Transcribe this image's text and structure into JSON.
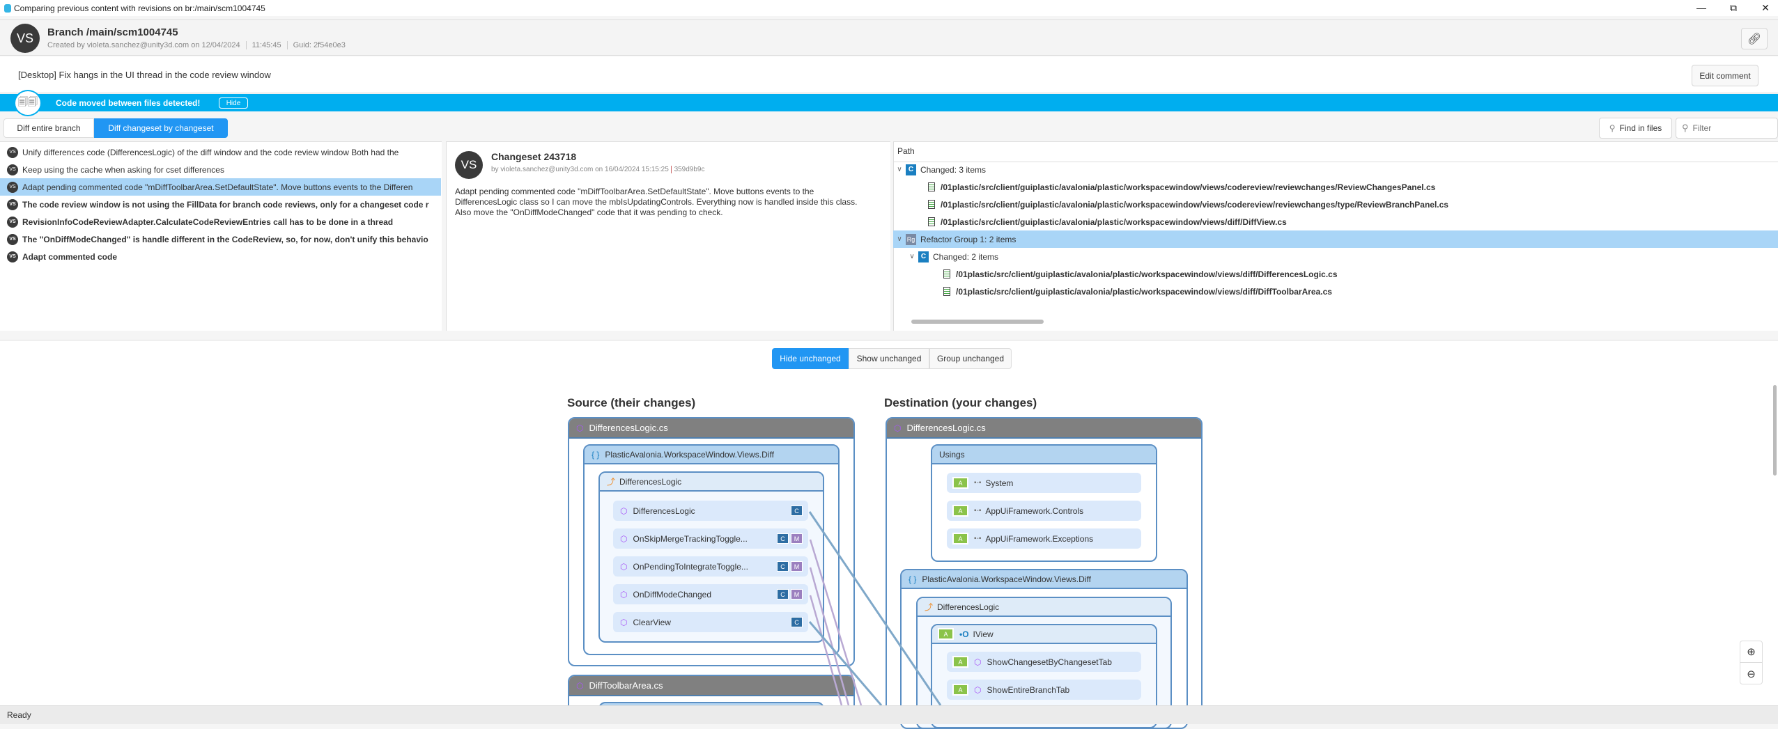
{
  "window": {
    "title": "Comparing previous content with revisions on br:/main/scm1004745",
    "controls": [
      "minimize",
      "restore",
      "close"
    ]
  },
  "header": {
    "avatar": "VS",
    "title": "Branch /main/scm1004745",
    "created": "Created by violeta.sanchez@unity3d.com on 12/04/2024",
    "time": "11:45:45",
    "guid": "Guid: 2f54e0e3"
  },
  "comment": {
    "text": "[Desktop] Fix hangs in the UI thread in the code review window",
    "edit_label": "Edit comment"
  },
  "banner": {
    "text": "Code moved between files detected!",
    "hide_label": "Hide",
    "color": "#00aeef"
  },
  "tabs": [
    {
      "label": "Diff entire branch",
      "active": false
    },
    {
      "label": "Diff changeset by changeset",
      "active": true
    }
  ],
  "toolbar": {
    "find_label": "Find in files",
    "filter_placeholder": "Filter"
  },
  "changesets": [
    {
      "avatar": "VS",
      "text": "Unify differences code (DifferencesLogic) of the diff window and the code review window Both had the",
      "bold": false
    },
    {
      "avatar": "VS",
      "text": "Keep using the cache when asking for cset differences",
      "bold": false
    },
    {
      "avatar": "VS",
      "text": "Adapt pending commented code \"mDiffToolbarArea.SetDefaultState\". Move buttons events to the Differen",
      "bold": false,
      "selected": true
    },
    {
      "avatar": "VS",
      "text": "The code review window is not using the FillData for branch code reviews, only for a changeset code r",
      "bold": true
    },
    {
      "avatar": "VS",
      "text": "RevisionInfoCodeReviewAdapter.CalculateCodeReviewEntries call has to be done in a thread",
      "bold": true
    },
    {
      "avatar": "VS",
      "text": "The \"OnDiffModeChanged\" is handle different in the CodeReview, so, for now, don't unify this behavio",
      "bold": true
    },
    {
      "avatar": "VS",
      "text": "Adapt commented code",
      "bold": true
    }
  ],
  "details": {
    "avatar": "VS",
    "title": "Changeset 243718",
    "meta": "by violeta.sanchez@unity3d.com on 16/04/2024 15:15:25",
    "hash": "359d9b9c",
    "body": "Adapt pending commented code \"mDiffToolbarArea.SetDefaultState\". Move buttons events to the DifferencesLogic class so I can move the mbIsUpdatingControls. Everything now is handled inside this class. Also move the \"OnDiffModeChanged\" code that it was pending to check."
  },
  "tree": {
    "header": "Path",
    "rows": [
      {
        "type": "group",
        "badge": "C",
        "label": "Changed: 3 items",
        "level": 0
      },
      {
        "type": "file",
        "label": "/01plastic/src/client/guiplastic/avalonia/plastic/workspacewindow/views/codereview/reviewchanges/ReviewChangesPanel.cs",
        "level": 1
      },
      {
        "type": "file",
        "label": "/01plastic/src/client/guiplastic/avalonia/plastic/workspacewindow/views/codereview/reviewchanges/type/ReviewBranchPanel.cs",
        "level": 1
      },
      {
        "type": "file",
        "label": "/01plastic/src/client/guiplastic/avalonia/plastic/workspacewindow/views/diff/DiffView.cs",
        "level": 1
      },
      {
        "type": "group",
        "badge": "Rg",
        "label": "Refactor Group 1: 2 items",
        "level": 0,
        "selected": true
      },
      {
        "type": "group",
        "badge": "C",
        "label": "Changed: 2 items",
        "level": 1
      },
      {
        "type": "file",
        "label": "/01plastic/src/client/guiplastic/avalonia/plastic/workspacewindow/views/diff/DifferencesLogic.cs",
        "level": 2
      },
      {
        "type": "file",
        "label": "/01plastic/src/client/guiplastic/avalonia/plastic/workspacewindow/views/diff/DiffToolbarArea.cs",
        "level": 2
      }
    ]
  },
  "view_modes": [
    {
      "label": "Hide unchanged",
      "active": true
    },
    {
      "label": "Show unchanged",
      "active": false
    },
    {
      "label": "Group unchanged",
      "active": false
    }
  ],
  "source": {
    "heading": "Source (their changes)",
    "file": "DifferencesLogic.cs",
    "namespace": "PlasticAvalonia.WorkspaceWindow.Views.Diff",
    "class": "DifferencesLogic",
    "members": [
      {
        "name": "DifferencesLogic",
        "tags": [
          "C"
        ]
      },
      {
        "name": "OnSkipMergeTrackingToggle...",
        "tags": [
          "C",
          "M"
        ]
      },
      {
        "name": "OnPendingToIntegrateToggle...",
        "tags": [
          "C",
          "M"
        ]
      },
      {
        "name": "OnDiffModeChanged",
        "tags": [
          "C",
          "M"
        ]
      },
      {
        "name": "ClearView",
        "tags": [
          "C"
        ]
      }
    ],
    "file2": "DiffToolbarArea.cs"
  },
  "destination": {
    "heading": "Destination (your changes)",
    "file": "DifferencesLogic.cs",
    "usings_label": "Usings",
    "usings": [
      {
        "tag": "A",
        "name": "System"
      },
      {
        "tag": "A",
        "name": "AppUiFramework.Controls"
      },
      {
        "tag": "A",
        "name": "AppUiFramework.Exceptions"
      }
    ],
    "namespace": "PlasticAvalonia.WorkspaceWindow.Views.Diff",
    "class": "DifferencesLogic",
    "interface": {
      "tag": "A",
      "name": "IView"
    },
    "members": [
      {
        "tag": "A",
        "name": "ShowChangesetByChangesetTab"
      },
      {
        "tag": "A",
        "name": "ShowEntireBranchTab"
      }
    ]
  },
  "status": {
    "text": "Ready"
  }
}
